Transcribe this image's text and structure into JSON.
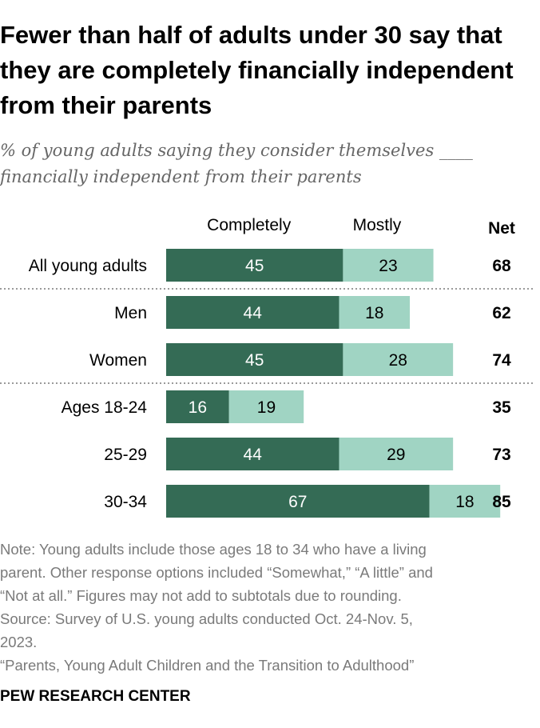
{
  "title": "Fewer than half of adults under 30 say that they are completely financially independent from their parents",
  "subtitle": "% of young adults saying they consider themselves ____ financially independent from their parents",
  "colors": {
    "completely": "#346b55",
    "mostly": "#a0d4c3",
    "completely_text": "#ffffff",
    "mostly_text": "#000000",
    "divider": "#9a9a9a"
  },
  "chart_data": {
    "type": "bar",
    "orientation": "horizontal",
    "stacked": true,
    "categories": [
      "All young adults",
      "Men",
      "Women",
      "Ages 18-24",
      "25-29",
      "30-34"
    ],
    "series": [
      {
        "name": "Completely",
        "values": [
          45,
          44,
          45,
          16,
          44,
          67
        ]
      },
      {
        "name": "Mostly",
        "values": [
          23,
          18,
          28,
          19,
          29,
          18
        ]
      }
    ],
    "net_label": "Net",
    "net": [
      68,
      62,
      74,
      35,
      73,
      85
    ],
    "group_dividers_after": [
      0,
      2
    ],
    "xlim": [
      0,
      100
    ]
  },
  "note": {
    "lines": [
      "Note: Young adults include those ages 18 to 34 who have a living",
      "parent. Other response options included “Somewhat,” “A little” and",
      "“Not at all.” Figures may not add to subtotals due to rounding.",
      "Source: Survey of U.S. young adults conducted Oct. 24-Nov. 5,",
      "2023.",
      "“Parents, Young Adult Children and the Transition to Adulthood”"
    ]
  },
  "brand": "PEW RESEARCH CENTER"
}
